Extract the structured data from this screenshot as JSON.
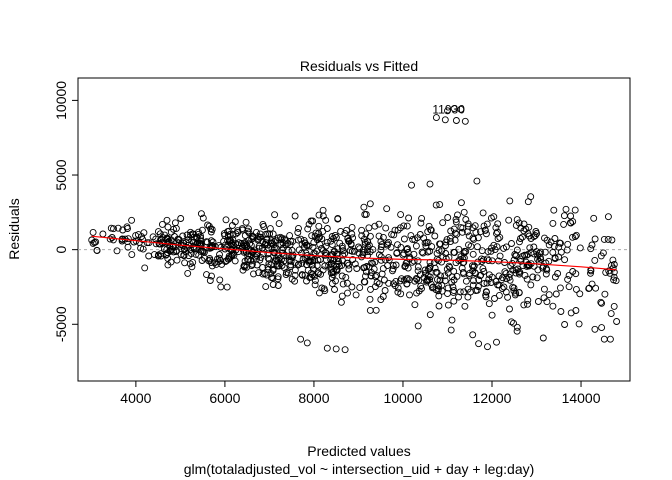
{
  "chart_data": {
    "type": "scatter",
    "title": "Residuals vs Fitted",
    "xlabel": "Predicted values",
    "subtitle": "glm(totaladjusted_vol ~ intersection_uid + day + leg:day)",
    "ylabel": "Residuals",
    "xlim": [
      2700,
      15100
    ],
    "ylim": [
      -8800,
      11500
    ],
    "xticks": [
      4000,
      6000,
      8000,
      10000,
      12000,
      14000
    ],
    "yticks": [
      -5000,
      0,
      5000,
      10000
    ],
    "zero_line": true,
    "point_style": "open-circle",
    "smoother_color": "#ff0000",
    "smoother": {
      "x": [
        3000,
        4000,
        5000,
        6000,
        7000,
        8000,
        9000,
        10000,
        11000,
        12000,
        13000,
        14000,
        14800
      ],
      "y": [
        900,
        600,
        300,
        50,
        -200,
        -400,
        -550,
        -650,
        -700,
        -800,
        -950,
        -1150,
        -1350
      ]
    },
    "outlier_label": "11930",
    "outlier_point": {
      "x": 10750,
      "y": 8850
    },
    "outlier_points": [
      {
        "x": 11000,
        "y": 9300
      },
      {
        "x": 11150,
        "y": 9450
      },
      {
        "x": 11300,
        "y": 9400
      },
      {
        "x": 10950,
        "y": 8700
      },
      {
        "x": 11200,
        "y": 8650
      },
      {
        "x": 11400,
        "y": 8600
      }
    ],
    "low_outliers": [
      {
        "x": 7700,
        "y": -6000
      },
      {
        "x": 7850,
        "y": -6250
      },
      {
        "x": 8300,
        "y": -6600
      },
      {
        "x": 8500,
        "y": -6650
      },
      {
        "x": 8700,
        "y": -6700
      },
      {
        "x": 11700,
        "y": -6300
      },
      {
        "x": 11900,
        "y": -6500
      },
      {
        "x": 12100,
        "y": -6200
      }
    ],
    "n_points": 1150
  }
}
